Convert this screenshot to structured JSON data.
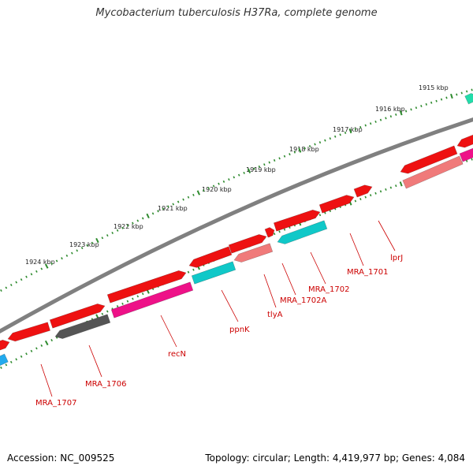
{
  "title": "Mycobacterium tuberculosis H37Ra, complete genome",
  "footer": {
    "accession": "Accession: NC_009525",
    "topology": "Topology: circular; Length: 4,419,977 bp; Genes: 4,084"
  },
  "colors": {
    "backbone": "#808080",
    "tick": "#2e8b2e",
    "label": "#cc0000",
    "gene_red": "#ee1111",
    "gene_pink": "#f07a7a",
    "gene_magenta": "#ee1188",
    "gene_cyan": "#10c8c8",
    "gene_gray": "#555555",
    "gene_teal": "#22ddaa",
    "gene_blue": "#22aaee"
  },
  "kbp_labels": [
    "1915 kbp",
    "1916 kbp",
    "1917 kbp",
    "1918 kbp",
    "1919 kbp",
    "1920 kbp",
    "1921 kbp",
    "1922 kbp",
    "1923 kbp",
    "1924 kbp"
  ],
  "gene_labels": [
    "lprJ",
    "MRA_1701",
    "MRA_1702",
    "MRA_1702A",
    "tlyA",
    "ppnK",
    "recN",
    "MRA_1706",
    "MRA_1707"
  ]
}
